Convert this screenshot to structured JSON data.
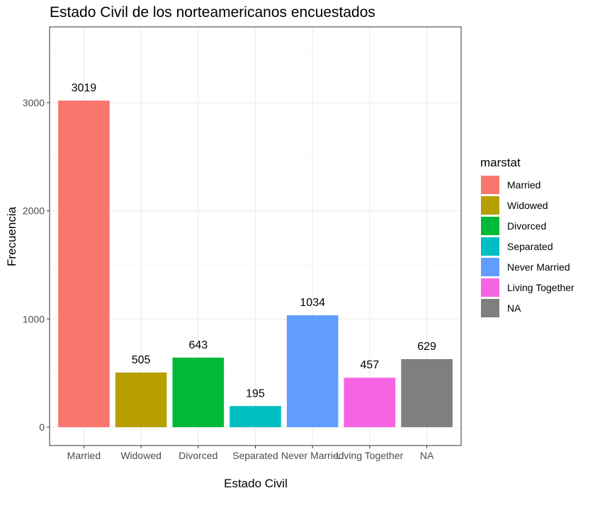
{
  "chart_data": {
    "type": "bar",
    "title": "Estado Civil de los norteamericanos encuestados",
    "xlabel": "Estado Civil",
    "ylabel": "Frecuencia",
    "categories": [
      "Married",
      "Widowed",
      "Divorced",
      "Separated",
      "Never Married",
      "Living Together",
      "NA"
    ],
    "values": [
      3019,
      505,
      643,
      195,
      1034,
      457,
      629
    ],
    "colors": [
      "#F8766D",
      "#B79F00",
      "#00BA38",
      "#00BFC4",
      "#619CFF",
      "#F564E3",
      "#7F7F7F"
    ],
    "ylim": [
      -170,
      3700
    ],
    "yticks": [
      0,
      1000,
      2000,
      3000
    ],
    "grid": true,
    "legend": {
      "title": "marstat",
      "position": "right",
      "entries": [
        "Married",
        "Widowed",
        "Divorced",
        "Separated",
        "Never Married",
        "Living Together",
        "NA"
      ]
    }
  }
}
